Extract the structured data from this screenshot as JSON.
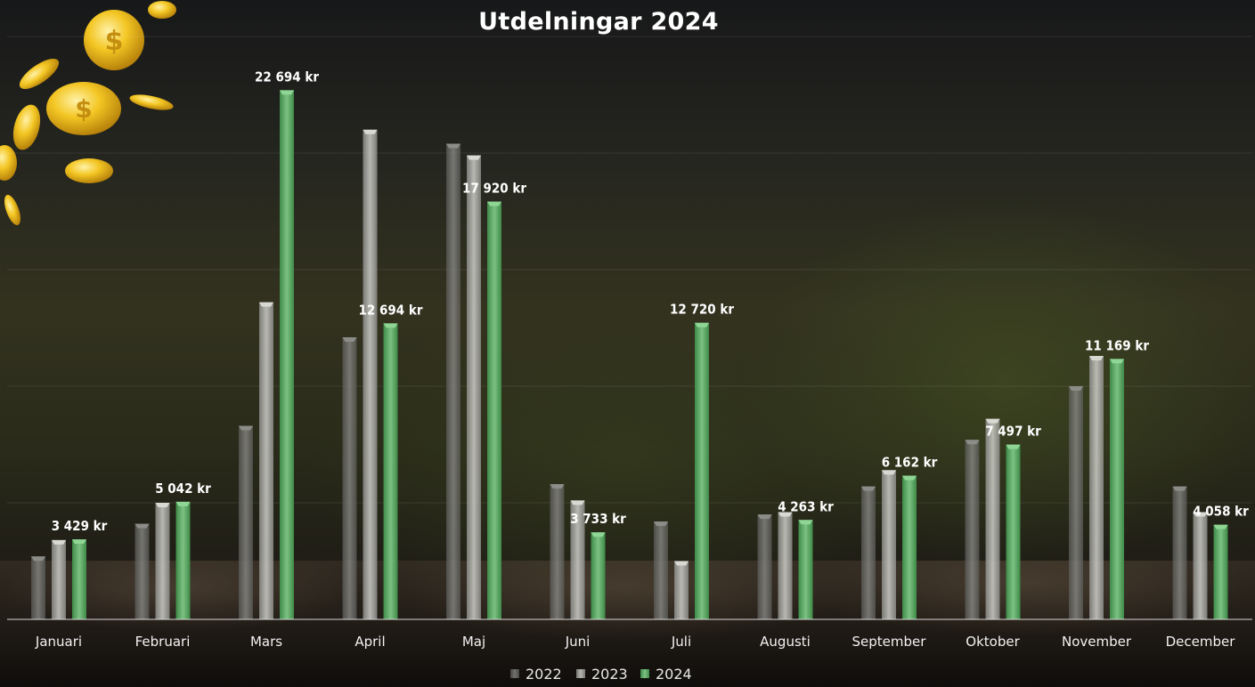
{
  "chart_data": {
    "type": "bar",
    "title": "Utdelningar 2024",
    "categories": [
      "Januari",
      "Februari",
      "Mars",
      "April",
      "Maj",
      "Juni",
      "Juli",
      "Augusti",
      "September",
      "Oktober",
      "November",
      "December"
    ],
    "series": [
      {
        "name": "2022",
        "values": [
          2700,
          4100,
          8300,
          12100,
          20400,
          5800,
          4200,
          4500,
          5700,
          7700,
          10000,
          5700
        ],
        "color": "#6a6a66"
      },
      {
        "name": "2023",
        "values": [
          3400,
          5000,
          13600,
          21000,
          19900,
          5100,
          2500,
          4600,
          6400,
          8600,
          11300,
          4600
        ],
        "color": "#9b9b96"
      },
      {
        "name": "2024",
        "values": [
          3429,
          5042,
          22694,
          12694,
          17920,
          3733,
          12720,
          4263,
          6162,
          7497,
          11169,
          4058
        ],
        "color": "#4e9a56"
      }
    ],
    "data_labels": [
      "3 429 kr",
      "5 042 kr",
      "22 694 kr",
      "12 694 kr",
      "17 920 kr",
      "3 733 kr",
      "12 720 kr",
      "4 263 kr",
      "6 162 kr",
      "7 497 kr",
      "11 169 kr",
      "4 058 kr"
    ],
    "ylim": [
      0,
      25000
    ],
    "grid": true,
    "legend_position": "bottom"
  }
}
